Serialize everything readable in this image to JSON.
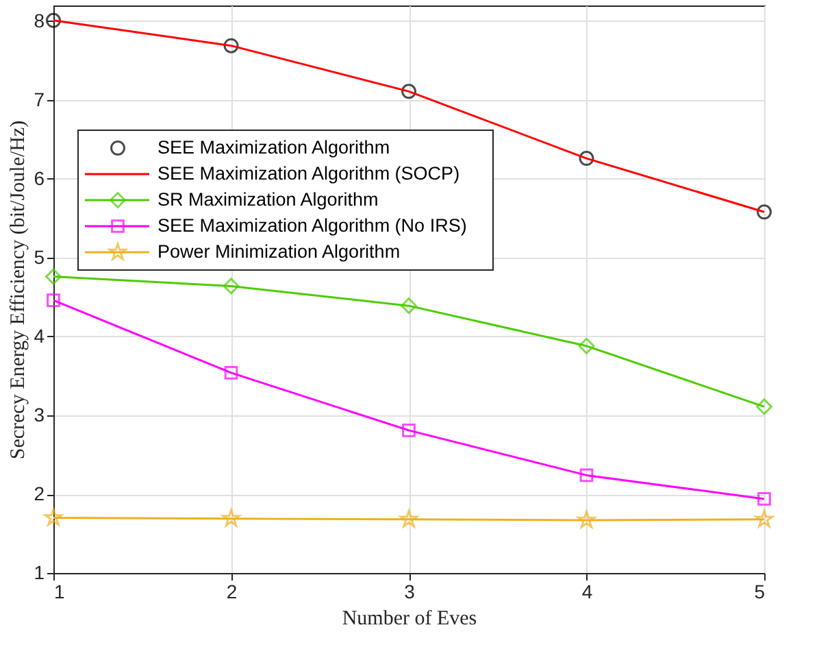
{
  "chart_data": {
    "type": "line",
    "xlabel": "Number of Eves",
    "ylabel": "Secrecy Energy Efficiency (bit/Joule/Hz)",
    "x": [
      1,
      2,
      3,
      4,
      5
    ],
    "xlim": [
      1,
      5
    ],
    "xticks": [
      1,
      2,
      3,
      4,
      5
    ],
    "ylim": [
      1,
      8.2
    ],
    "yticks": [
      1,
      2,
      3,
      4,
      5,
      6,
      7,
      8
    ],
    "grid": true,
    "legend": "top left",
    "series": [
      {
        "name": "SEE Maximization Algorithm",
        "type": "scatter",
        "marker": "circle",
        "color": "#000000",
        "values": [
          8.01,
          7.69,
          7.11,
          6.26,
          5.58
        ]
      },
      {
        "name": "SEE Maximization Algorithm (SOCP)",
        "marker": "none",
        "color": "#ff0000",
        "values": [
          8.01,
          7.69,
          7.11,
          6.26,
          5.58
        ]
      },
      {
        "name": "SR Maximization Algorithm",
        "marker": "diamond",
        "color": "#4dcc00",
        "values": [
          4.76,
          4.64,
          4.39,
          3.88,
          3.11
        ]
      },
      {
        "name": "SEE Maximization Algorithm (No IRS)",
        "marker": "square",
        "color": "#ff00ff",
        "values": [
          4.46,
          3.54,
          2.81,
          2.24,
          1.94
        ]
      },
      {
        "name": "Power Minimization Algorithm",
        "marker": "star",
        "color": "#edb120",
        "values": [
          1.7,
          1.69,
          1.68,
          1.67,
          1.68
        ]
      }
    ]
  }
}
